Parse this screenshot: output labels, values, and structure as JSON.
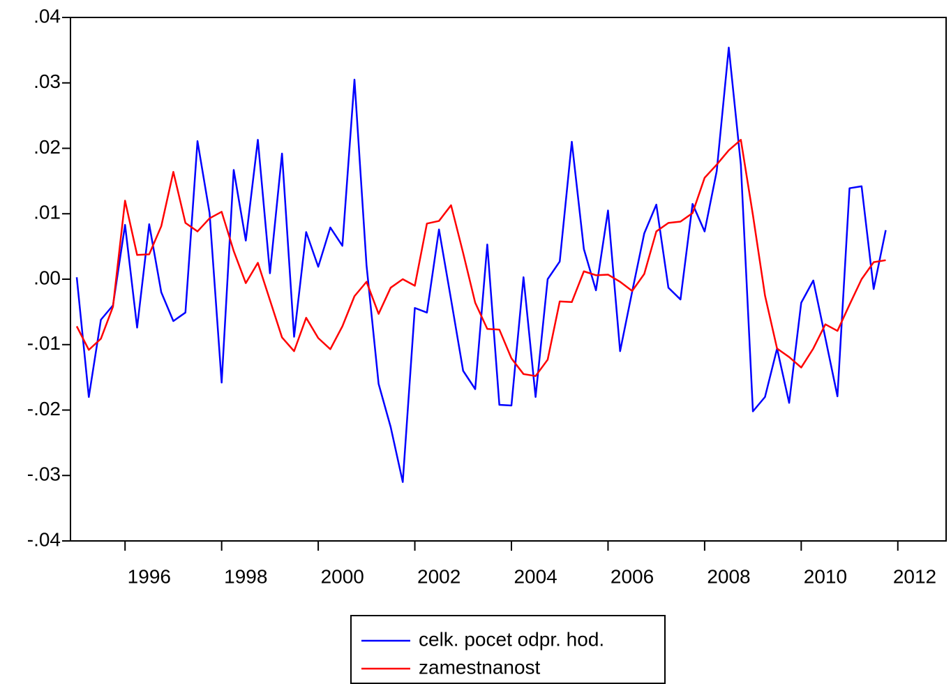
{
  "chart_data": {
    "type": "line",
    "x": [
      1995,
      1995.25,
      1995.5,
      1995.75,
      1996,
      1996.25,
      1996.5,
      1996.75,
      1997,
      1997.25,
      1997.5,
      1997.75,
      1998,
      1998.25,
      1998.5,
      1998.75,
      1999,
      1999.25,
      1999.5,
      1999.75,
      2000,
      2000.25,
      2000.5,
      2000.75,
      2001,
      2001.25,
      2001.5,
      2001.75,
      2002,
      2002.25,
      2002.5,
      2002.75,
      2003,
      2003.25,
      2003.5,
      2003.75,
      2004,
      2004.25,
      2004.5,
      2004.75,
      2005,
      2005.25,
      2005.5,
      2005.75,
      2006,
      2006.25,
      2006.5,
      2006.75,
      2007,
      2007.25,
      2007.5,
      2007.75,
      2008,
      2008.25,
      2008.5,
      2008.75,
      2009,
      2009.25,
      2009.5,
      2009.75,
      2010,
      2010.25,
      2010.5,
      2010.75,
      2011,
      2011.25,
      2011.5,
      2011.75
    ],
    "series": [
      {
        "name": "celk. pocet odpr. hod.",
        "color": "#0000ff",
        "values": [
          0.0003,
          -0.018,
          -0.0062,
          -0.004,
          0.0083,
          -0.0074,
          0.0084,
          -0.002,
          -0.0064,
          -0.0051,
          0.0211,
          0.0101,
          -0.0158,
          0.0167,
          0.0059,
          0.0213,
          0.0009,
          0.0192,
          -0.0088,
          0.0072,
          0.0019,
          0.0079,
          0.0051,
          0.0305,
          0.0021,
          -0.016,
          -0.0226,
          -0.031,
          -0.0044,
          -0.0051,
          0.0076,
          -0.0031,
          -0.014,
          -0.0168,
          0.0053,
          -0.0192,
          -0.0193,
          0.0003,
          -0.018,
          0.0,
          0.0027,
          0.021,
          0.0046,
          -0.0017,
          0.0105,
          -0.011,
          -0.0019,
          0.007,
          0.0114,
          -0.0013,
          -0.0031,
          0.0115,
          0.0073,
          0.0165,
          0.0354,
          0.0175,
          -0.0202,
          -0.018,
          -0.0106,
          -0.0189,
          -0.0036,
          -0.0002,
          -0.009,
          -0.0179,
          0.0139,
          0.0142,
          -0.0015,
          0.0075
        ]
      },
      {
        "name": "zamestnanost",
        "color": "#ff0000",
        "values": [
          -0.0072,
          -0.0108,
          -0.0091,
          -0.0042,
          0.012,
          0.0037,
          0.0038,
          0.0081,
          0.0164,
          0.0086,
          0.0073,
          0.0093,
          0.0103,
          0.0043,
          -0.0006,
          0.0025,
          -0.0032,
          -0.0089,
          -0.011,
          -0.0059,
          -0.009,
          -0.0107,
          -0.0072,
          -0.0026,
          -0.0004,
          -0.0053,
          -0.0013,
          0.0,
          -0.001,
          0.0085,
          0.0089,
          0.0113,
          0.004,
          -0.0036,
          -0.0076,
          -0.0077,
          -0.0121,
          -0.0145,
          -0.0148,
          -0.0123,
          -0.0034,
          -0.0035,
          0.0012,
          0.0006,
          0.0007,
          -0.0004,
          -0.0018,
          0.0008,
          0.0073,
          0.0086,
          0.0088,
          0.0101,
          0.0155,
          0.0175,
          0.0197,
          0.0213,
          0.0098,
          -0.0025,
          -0.0106,
          -0.0119,
          -0.0135,
          -0.0106,
          -0.0069,
          -0.0079,
          -0.0039,
          0.0,
          0.0026,
          0.0029
        ]
      }
    ],
    "xlim": [
      1994.87,
      2013.0
    ],
    "xticks": [
      1996,
      1998,
      2000,
      2002,
      2004,
      2006,
      2008,
      2010,
      2012
    ],
    "ylim": [
      -0.04,
      0.04
    ],
    "yticks": [
      {
        "value": -0.04,
        "label": "-.04"
      },
      {
        "value": -0.03,
        "label": "-.03"
      },
      {
        "value": -0.02,
        "label": "-.02"
      },
      {
        "value": -0.01,
        "label": "-.01"
      },
      {
        "value": 0,
        "label": ".00"
      },
      {
        "value": 0.01,
        "label": ".01"
      },
      {
        "value": 0.02,
        "label": ".02"
      },
      {
        "value": 0.03,
        "label": ".03"
      },
      {
        "value": 0.04,
        "label": ".04"
      }
    ],
    "grid": false,
    "legend": "bottom"
  }
}
